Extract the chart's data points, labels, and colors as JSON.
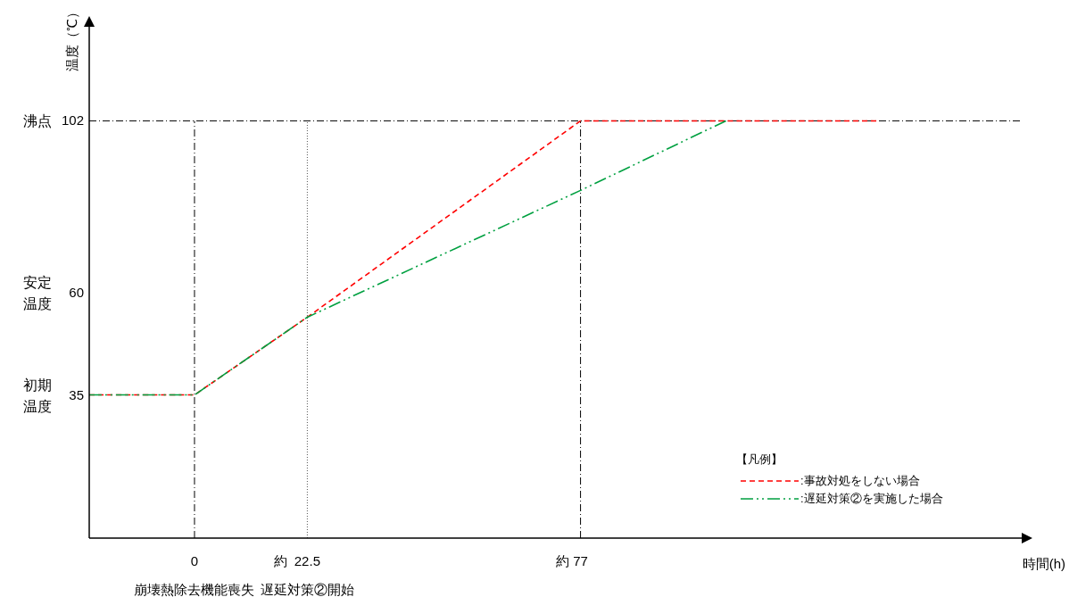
{
  "chart_data": {
    "type": "line",
    "xlabel": "時間(h)",
    "ylabel": "温度（℃）",
    "legend_title": "【凡例】",
    "xlim": [
      -21,
      165
    ],
    "ylim": [
      0,
      125
    ],
    "xticks": [
      0,
      22.5,
      77
    ],
    "yticks": [
      35,
      60,
      102
    ],
    "series": [
      {
        "name": ":事故対処をしない場合",
        "color": "#ff0000",
        "line_style": "dashed",
        "x": [
          -21,
          0,
          22.5,
          77,
          136
        ],
        "values": [
          35,
          35,
          54,
          102,
          102
        ]
      },
      {
        "name": ":遅延対策②を実施した場合",
        "color": "#00a040",
        "line_style": "dashdotdot",
        "x": [
          -21,
          0,
          22.5,
          77,
          106
        ],
        "values": [
          35,
          35,
          54,
          85,
          102
        ]
      }
    ],
    "ref_lines": [
      {
        "axis": "x",
        "value": 0,
        "line_style": "dashdot",
        "color": "#000000"
      },
      {
        "axis": "x",
        "value": 22.5,
        "line_style": "dotted",
        "color": "#555555"
      },
      {
        "axis": "x",
        "value": 77,
        "line_style": "dashdot",
        "color": "#000000"
      },
      {
        "axis": "y",
        "value": 102,
        "line_style": "dashdot",
        "color": "#000000"
      }
    ],
    "annotations": [
      "初期温度",
      "安定温度",
      "沸点",
      "崩壊熱除去機能喪失",
      "遅延対策②開始",
      "約",
      "約"
    ],
    "legend": "bottom right",
    "grid": false,
    "marker": "none"
  }
}
